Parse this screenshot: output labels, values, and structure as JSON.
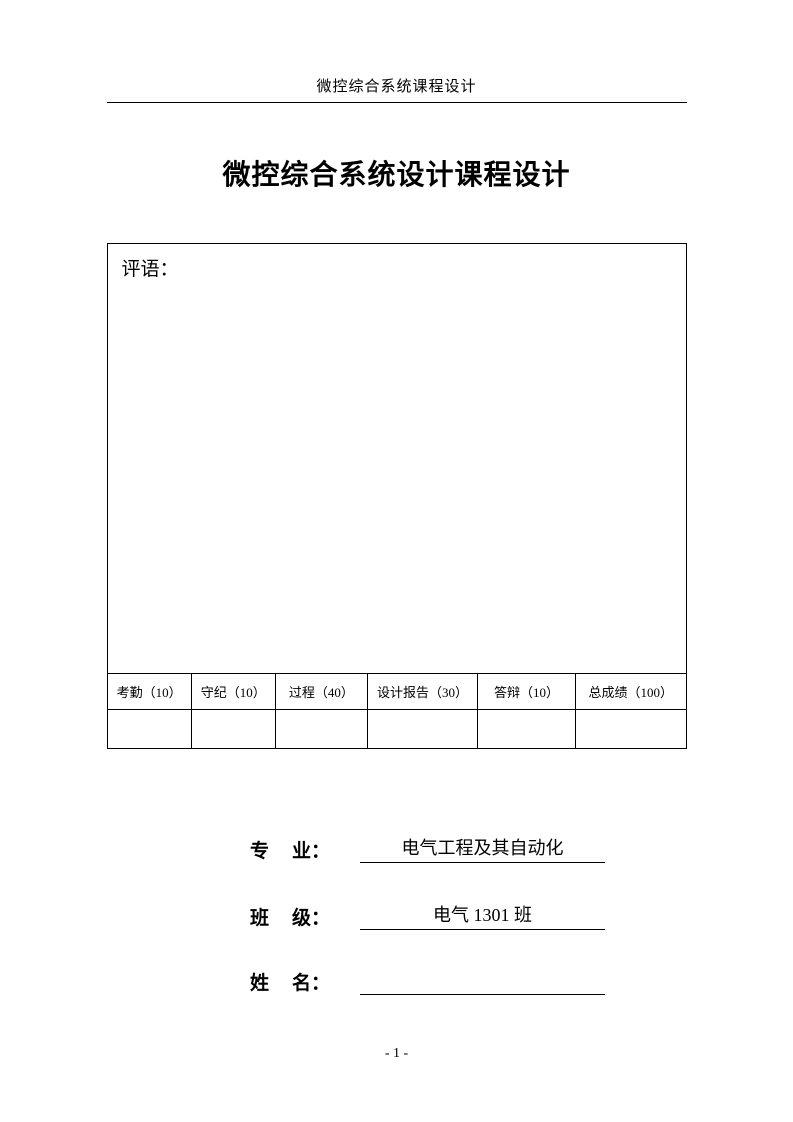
{
  "header": {
    "text": "微控综合系统课程设计"
  },
  "title": "微控综合系统设计课程设计",
  "evaluation": {
    "comment_label": "评语：",
    "score_columns": [
      "考勤（10）",
      "守纪（10）",
      "过程（40）",
      "设计报告（30）",
      "答辩（10）",
      "总成绩（100）"
    ]
  },
  "info": {
    "major_label_1": "专",
    "major_label_2": "业：",
    "major_value": "电气工程及其自动化",
    "class_label_1": "班",
    "class_label_2": "级：",
    "class_value": "电气 1301 班",
    "name_label_1": "姓",
    "name_label_2": "名：",
    "name_value": ""
  },
  "footer": {
    "page_number": "- 1 -"
  },
  "style": {
    "page_bg": "#ffffff",
    "text_color": "#000000",
    "border_color": "#000000",
    "col_widths": [
      "14.5%",
      "14.5%",
      "16%",
      "19%",
      "17%",
      "19%"
    ]
  }
}
